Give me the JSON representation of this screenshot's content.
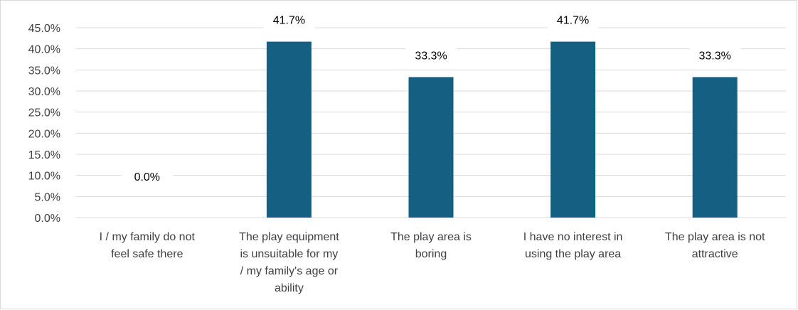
{
  "chart_data": {
    "type": "bar",
    "categories": [
      [
        "I / my family do not",
        "feel safe there"
      ],
      [
        "The play equipment",
        "is unsuitable for my",
        "/ my family's age or",
        "ability"
      ],
      [
        "The play area is",
        "boring"
      ],
      [
        "I have no interest in",
        "using the play area"
      ],
      [
        "The play area is not",
        "attractive"
      ]
    ],
    "values": [
      0.0,
      41.7,
      33.3,
      41.7,
      33.3
    ],
    "data_labels": [
      "0.0%",
      "41.7%",
      "33.3%",
      "41.7%",
      "33.3%"
    ],
    "ylim": [
      0,
      45
    ],
    "yticks": [
      "0.0%",
      "5.0%",
      "10.0%",
      "15.0%",
      "20.0%",
      "25.0%",
      "30.0%",
      "35.0%",
      "40.0%",
      "45.0%"
    ],
    "ytick_values": [
      0,
      5,
      10,
      15,
      20,
      25,
      30,
      35,
      40,
      45
    ],
    "grid": true,
    "legend": "none",
    "bar_color": "#156082",
    "title": "",
    "xlabel": "",
    "ylabel": ""
  }
}
